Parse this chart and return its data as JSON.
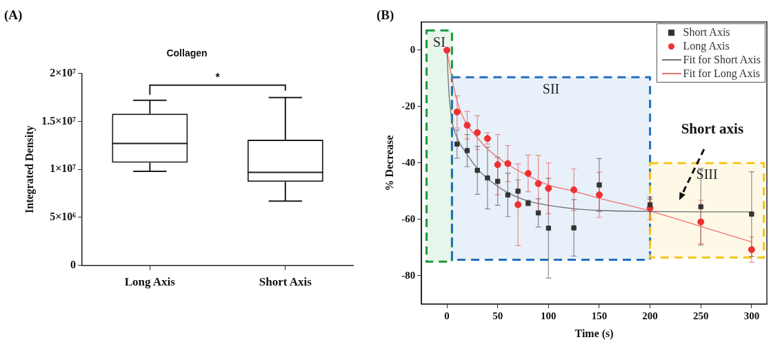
{
  "chart_data": [
    {
      "type": "box",
      "title": "Collagen",
      "ylabel": "Integrated Density",
      "categories": [
        "Long Axis",
        "Short Axis"
      ],
      "boxes": [
        {
          "low": 9800000,
          "q1": 10700000,
          "median": 12700000,
          "q3": 15800000,
          "high": 17200000
        },
        {
          "low": 6700000,
          "q1": 8700000,
          "median": 9700000,
          "q3": 13100000,
          "high": 17500000
        }
      ],
      "color": "#1a1a1a",
      "ylim": [
        0,
        20000000
      ],
      "yticks": [
        0,
        {
          "value": 5000000,
          "label": "5×10⁶"
        },
        {
          "value": 10000000,
          "label": "1×10⁷"
        },
        {
          "value": 15000000,
          "label": "1.5×10⁷"
        },
        {
          "value": 20000000,
          "label": "2×10⁷"
        }
      ],
      "annotations": [
        "(A)",
        "*"
      ],
      "grid": false
    },
    {
      "type": "scatter",
      "xlabel": "Time (s)",
      "ylabel": "% Decrease",
      "xlim": [
        -25,
        315
      ],
      "xticks": [
        0,
        50,
        100,
        150,
        200,
        250,
        300
      ],
      "ylim": [
        -90,
        10
      ],
      "yticks": [
        -80,
        -60,
        -40,
        -20,
        0
      ],
      "series": [
        {
          "name": "Short Axis",
          "type": "scatter",
          "marker": "square",
          "color": "#333333",
          "x": [
            10,
            20,
            30,
            40,
            50,
            60,
            70,
            80,
            90,
            100,
            125,
            150,
            200,
            250,
            300
          ],
          "values": [
            -33.3,
            -35.6,
            -42.6,
            -45.3,
            -46.5,
            -51.3,
            -50,
            -54.2,
            -57.7,
            -63.1,
            -63,
            -47.8,
            -54.8,
            -55.5,
            -58.1
          ],
          "errors": [
            5,
            5.7,
            8.5,
            11,
            8.5,
            7.7,
            4,
            1,
            5,
            17.7,
            10,
            9.4,
            2,
            13.6,
            15
          ]
        },
        {
          "name": "Long Axis",
          "type": "scatter",
          "marker": "circle",
          "color": "#f03030",
          "x": [
            0,
            10,
            20,
            30,
            40,
            50,
            60,
            70,
            80,
            90,
            100,
            125,
            150,
            200,
            250,
            300
          ],
          "values": [
            0,
            -21.9,
            -26.6,
            -29.2,
            -31.3,
            -40.6,
            -40.2,
            -54.8,
            -43.7,
            -47.3,
            -49,
            -49.5,
            -51.3,
            -56,
            -60.9,
            -70.7
          ],
          "errors": [
            null,
            5.7,
            4.9,
            6,
            2,
            10.7,
            6.4,
            14.5,
            6.5,
            10,
            9,
            7.4,
            8,
            4,
            7.7,
            4.5
          ]
        },
        {
          "name": "Fit for Short Axis",
          "type": "line",
          "color": "#707070",
          "x": [
            0,
            2,
            5,
            10,
            20,
            30,
            40,
            60,
            80,
            100,
            125,
            150,
            200,
            250,
            300
          ],
          "values": [
            0,
            -15,
            -25,
            -31,
            -37,
            -42,
            -45.5,
            -50.5,
            -53.5,
            -55,
            -56.2,
            -56.8,
            -57.2,
            -57.3,
            -57.3
          ]
        },
        {
          "name": "Fit for Long Axis",
          "type": "line",
          "color": "#f07070",
          "x": [
            0,
            5,
            10,
            15,
            20,
            30,
            40,
            60,
            80,
            100,
            125,
            150,
            200,
            250,
            300
          ],
          "values": [
            0,
            -10,
            -18,
            -23,
            -26.5,
            -31,
            -35,
            -40.5,
            -44.5,
            -47.8,
            -50,
            -52.5,
            -57,
            -62.5,
            -68
          ]
        }
      ],
      "bands": [
        {
          "axis": "x",
          "from": -20,
          "to": 5,
          "label": "SI",
          "color": "#1a9a3a"
        },
        {
          "axis": "x",
          "from": 5,
          "to": 200,
          "label": "SII",
          "color": "#1f6fc0"
        },
        {
          "axis": "x",
          "from": 200,
          "to": 312,
          "label": "SIII",
          "color": "#f5c518"
        }
      ],
      "annotations": [
        "(B)",
        "Short axis"
      ],
      "legend": "top right",
      "grid": false
    }
  ]
}
